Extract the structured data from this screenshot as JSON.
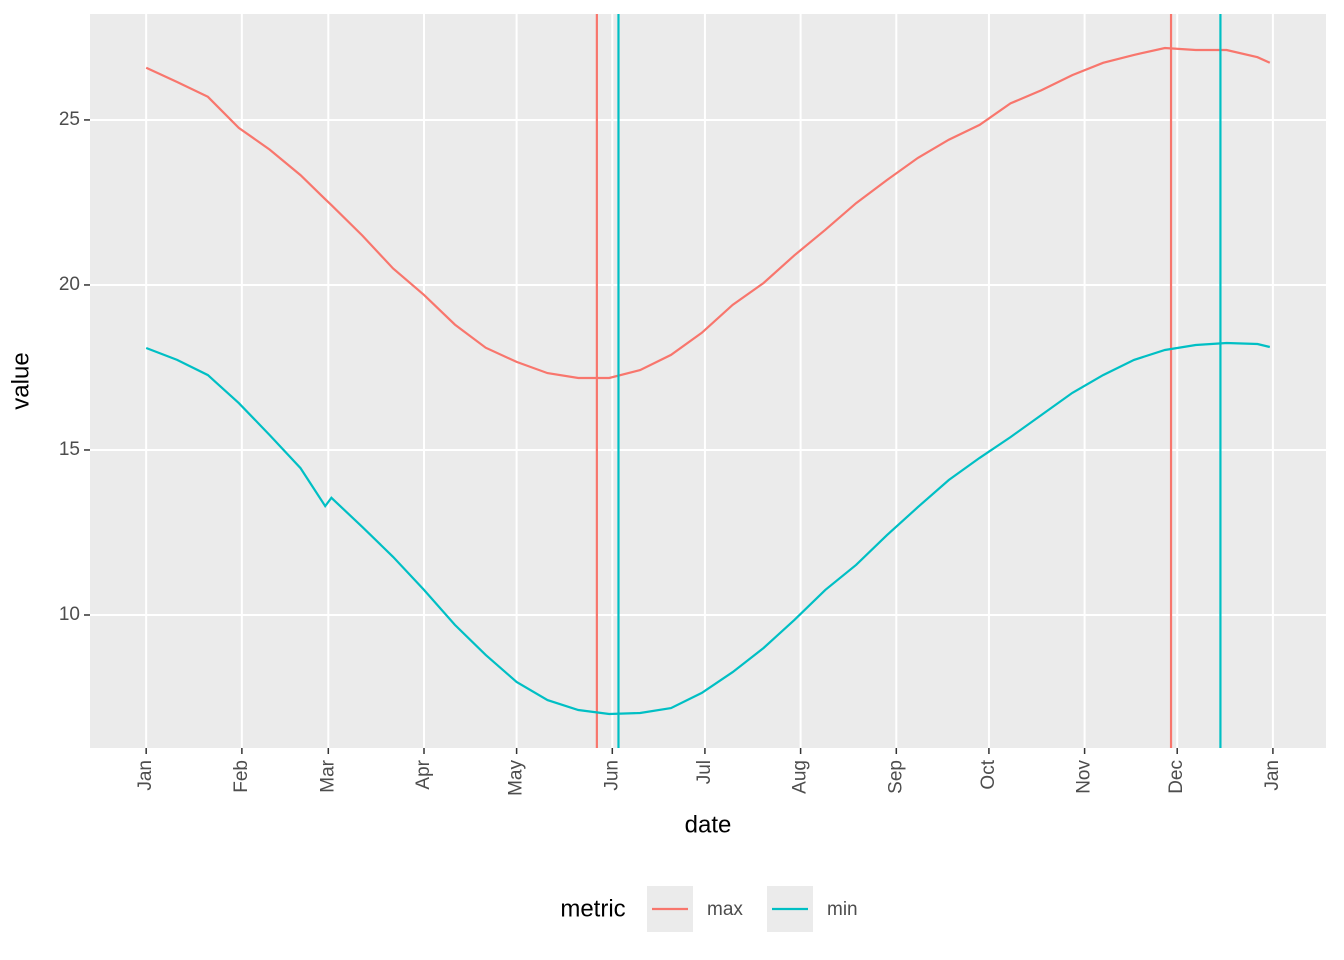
{
  "chart_data": {
    "type": "line",
    "x_label": "date",
    "y_label": "value",
    "legend_title": "metric",
    "legend_position": "bottom",
    "grid": true,
    "x": [
      0,
      10,
      20,
      30,
      40,
      50,
      58,
      60,
      70,
      80,
      90,
      100,
      110,
      120,
      130,
      140,
      150,
      160,
      170,
      180,
      190,
      200,
      210,
      220,
      230,
      240,
      250,
      260,
      270,
      280,
      290,
      300,
      310,
      320,
      330,
      340,
      350,
      360,
      364
    ],
    "series": [
      {
        "name": "max",
        "color": "#F8766D",
        "vlines": [
          146,
          332
        ],
        "values": [
          26.58,
          26.15,
          25.7,
          24.76,
          24.1,
          23.33,
          22.6,
          22.42,
          21.5,
          20.5,
          19.7,
          18.8,
          18.1,
          17.67,
          17.33,
          17.18,
          17.18,
          17.42,
          17.88,
          18.55,
          19.4,
          20.06,
          20.9,
          21.67,
          22.48,
          23.18,
          23.85,
          24.4,
          24.85,
          25.5,
          25.9,
          26.36,
          26.73,
          26.97,
          27.18,
          27.12,
          27.12,
          26.9,
          26.73
        ]
      },
      {
        "name": "min",
        "color": "#00BFC4",
        "vlines": [
          153,
          348
        ],
        "values": [
          18.09,
          17.73,
          17.27,
          16.42,
          15.45,
          14.45,
          13.3,
          13.55,
          12.67,
          11.76,
          10.76,
          9.7,
          8.79,
          7.97,
          7.42,
          7.12,
          7.0,
          7.03,
          7.18,
          7.64,
          8.27,
          9.0,
          9.85,
          10.76,
          11.52,
          12.42,
          13.27,
          14.09,
          14.76,
          15.39,
          16.06,
          16.73,
          17.27,
          17.73,
          18.03,
          18.18,
          18.24,
          18.21,
          18.12
        ]
      }
    ],
    "xlim": [
      -18.2,
      382.2
    ],
    "xticks": [
      {
        "value": 0,
        "label": "Jan"
      },
      {
        "value": 31,
        "label": "Feb"
      },
      {
        "value": 59,
        "label": "Mar"
      },
      {
        "value": 90,
        "label": "Apr"
      },
      {
        "value": 120,
        "label": "May"
      },
      {
        "value": 151,
        "label": "Jun"
      },
      {
        "value": 181,
        "label": "Jul"
      },
      {
        "value": 212,
        "label": "Aug"
      },
      {
        "value": 243,
        "label": "Sep"
      },
      {
        "value": 273,
        "label": "Oct"
      },
      {
        "value": 304,
        "label": "Nov"
      },
      {
        "value": 334,
        "label": "Dec"
      },
      {
        "value": 365,
        "label": "Jan"
      }
    ],
    "ylim": [
      5.97,
      28.21
    ],
    "yticks": [
      10,
      15,
      20,
      25
    ]
  }
}
